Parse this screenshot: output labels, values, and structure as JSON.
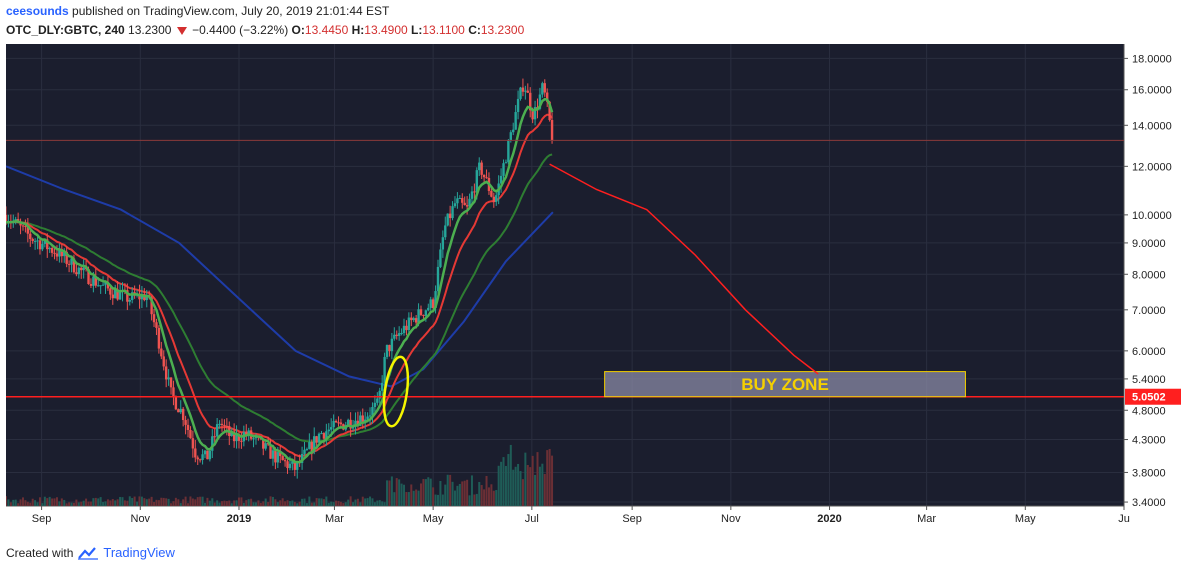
{
  "header": {
    "user": "ceesounds",
    "published_text": "published on TradingView.com, July 20, 2019 21:01:44 EST",
    "symbol": "OTC_DLY:GBTC, 240",
    "last": "13.2300",
    "change": "−0.4400 (−3.22%)",
    "open_label": "O:",
    "open": "13.4450",
    "high_label": "H:",
    "high": "13.4900",
    "low_label": "L:",
    "low": "13.1100",
    "close_label": "C:",
    "close": "13.2300"
  },
  "footer": {
    "created_with": "Created with",
    "brand": "TradingView",
    "logo_icon": "tradingview-cloud-icon"
  },
  "colors": {
    "background": "#1b1e2e",
    "grid": "#2a2e3f",
    "up": "#26a69a",
    "down": "#ef5350",
    "ema_fast": "#4caf50",
    "ema_mid": "#e53935",
    "ema_slow": "#2e7d32",
    "sma_long": "#1e3ca8",
    "projection": "#ff1f1f",
    "price_line": "#ff1f1f",
    "buy_zone_fill": "#8a8aa6",
    "buy_zone_border": "#f5d000",
    "buy_zone_text": "#f5d000",
    "highlight_ellipse": "#f5f500"
  },
  "chart_data": {
    "type": "candlestick",
    "y_scale": "log",
    "ylim": [
      3.35,
      19.0
    ],
    "y_ticks": [
      "18.0000",
      "16.0000",
      "14.0000",
      "12.0000",
      "10.0000",
      "9.0000",
      "8.0000",
      "7.0000",
      "6.0000",
      "5.4000",
      "4.8000",
      "4.3000",
      "3.8000",
      "3.4000"
    ],
    "x_ticks": [
      "Sep",
      "Nov",
      "2019",
      "Mar",
      "May",
      "Jul",
      "Sep",
      "Nov",
      "2020",
      "Mar",
      "May",
      "Ju"
    ],
    "x_tick_dates": [
      "2018-09-01",
      "2018-11-01",
      "2019-01-01",
      "2019-03-01",
      "2019-05-01",
      "2019-07-01",
      "2019-09-01",
      "2019-11-01",
      "2020-01-01",
      "2020-03-01",
      "2020-05-01",
      "2020-07-01"
    ],
    "xlim": [
      "2018-08-10",
      "2020-07-01"
    ],
    "current_price": "13.2300",
    "horizontal_line": {
      "value": 5.0502,
      "label": "5.0502"
    },
    "buy_zone": {
      "label": "BUY ZONE",
      "from_date": "2019-08-15",
      "to_date": "2020-03-25",
      "low": 5.0502,
      "high": 5.55
    },
    "projection": {
      "dates": [
        "2019-07-12",
        "2019-08-10",
        "2019-09-10",
        "2019-10-10",
        "2019-11-10",
        "2019-12-10",
        "2019-12-25"
      ],
      "values": [
        12.1,
        11.0,
        10.2,
        8.6,
        7.0,
        5.9,
        5.5
      ]
    },
    "highlight_circle": {
      "date": "2019-04-08",
      "center_value": 5.15
    },
    "price_path": {
      "dates": [
        "2018-08-10",
        "2018-08-25",
        "2018-09-10",
        "2018-09-25",
        "2018-10-10",
        "2018-10-25",
        "2018-11-05",
        "2018-11-12",
        "2018-11-20",
        "2018-11-28",
        "2018-12-05",
        "2018-12-12",
        "2018-12-20",
        "2018-12-28",
        "2019-01-05",
        "2019-01-15",
        "2019-01-25",
        "2019-02-05",
        "2019-02-12",
        "2019-02-20",
        "2019-03-01",
        "2019-03-10",
        "2019-03-20",
        "2019-03-28",
        "2019-04-02",
        "2019-04-10",
        "2019-04-20",
        "2019-05-01",
        "2019-05-08",
        "2019-05-15",
        "2019-05-22",
        "2019-05-30",
        "2019-06-08",
        "2019-06-15",
        "2019-06-22",
        "2019-06-26",
        "2019-07-02",
        "2019-07-08",
        "2019-07-14"
      ],
      "values": [
        10.0,
        9.2,
        8.7,
        8.1,
        7.6,
        7.3,
        7.4,
        6.3,
        5.1,
        4.7,
        4.1,
        4.0,
        4.6,
        4.3,
        4.4,
        4.2,
        4.0,
        3.85,
        4.1,
        4.4,
        4.5,
        4.6,
        4.7,
        4.9,
        6.0,
        6.4,
        6.8,
        7.2,
        9.5,
        10.5,
        10.2,
        12.0,
        10.5,
        12.5,
        15.0,
        16.5,
        14.5,
        16.2,
        13.23
      ]
    },
    "sma_long": {
      "dates": [
        "2018-08-10",
        "2018-09-15",
        "2018-10-20",
        "2018-11-25",
        "2019-01-01",
        "2019-02-05",
        "2019-03-10",
        "2019-04-05",
        "2019-04-25",
        "2019-05-20",
        "2019-06-15",
        "2019-07-14"
      ],
      "values": [
        12.0,
        11.0,
        10.2,
        9.0,
        7.3,
        6.0,
        5.45,
        5.25,
        5.6,
        6.7,
        8.4,
        10.1
      ]
    }
  }
}
